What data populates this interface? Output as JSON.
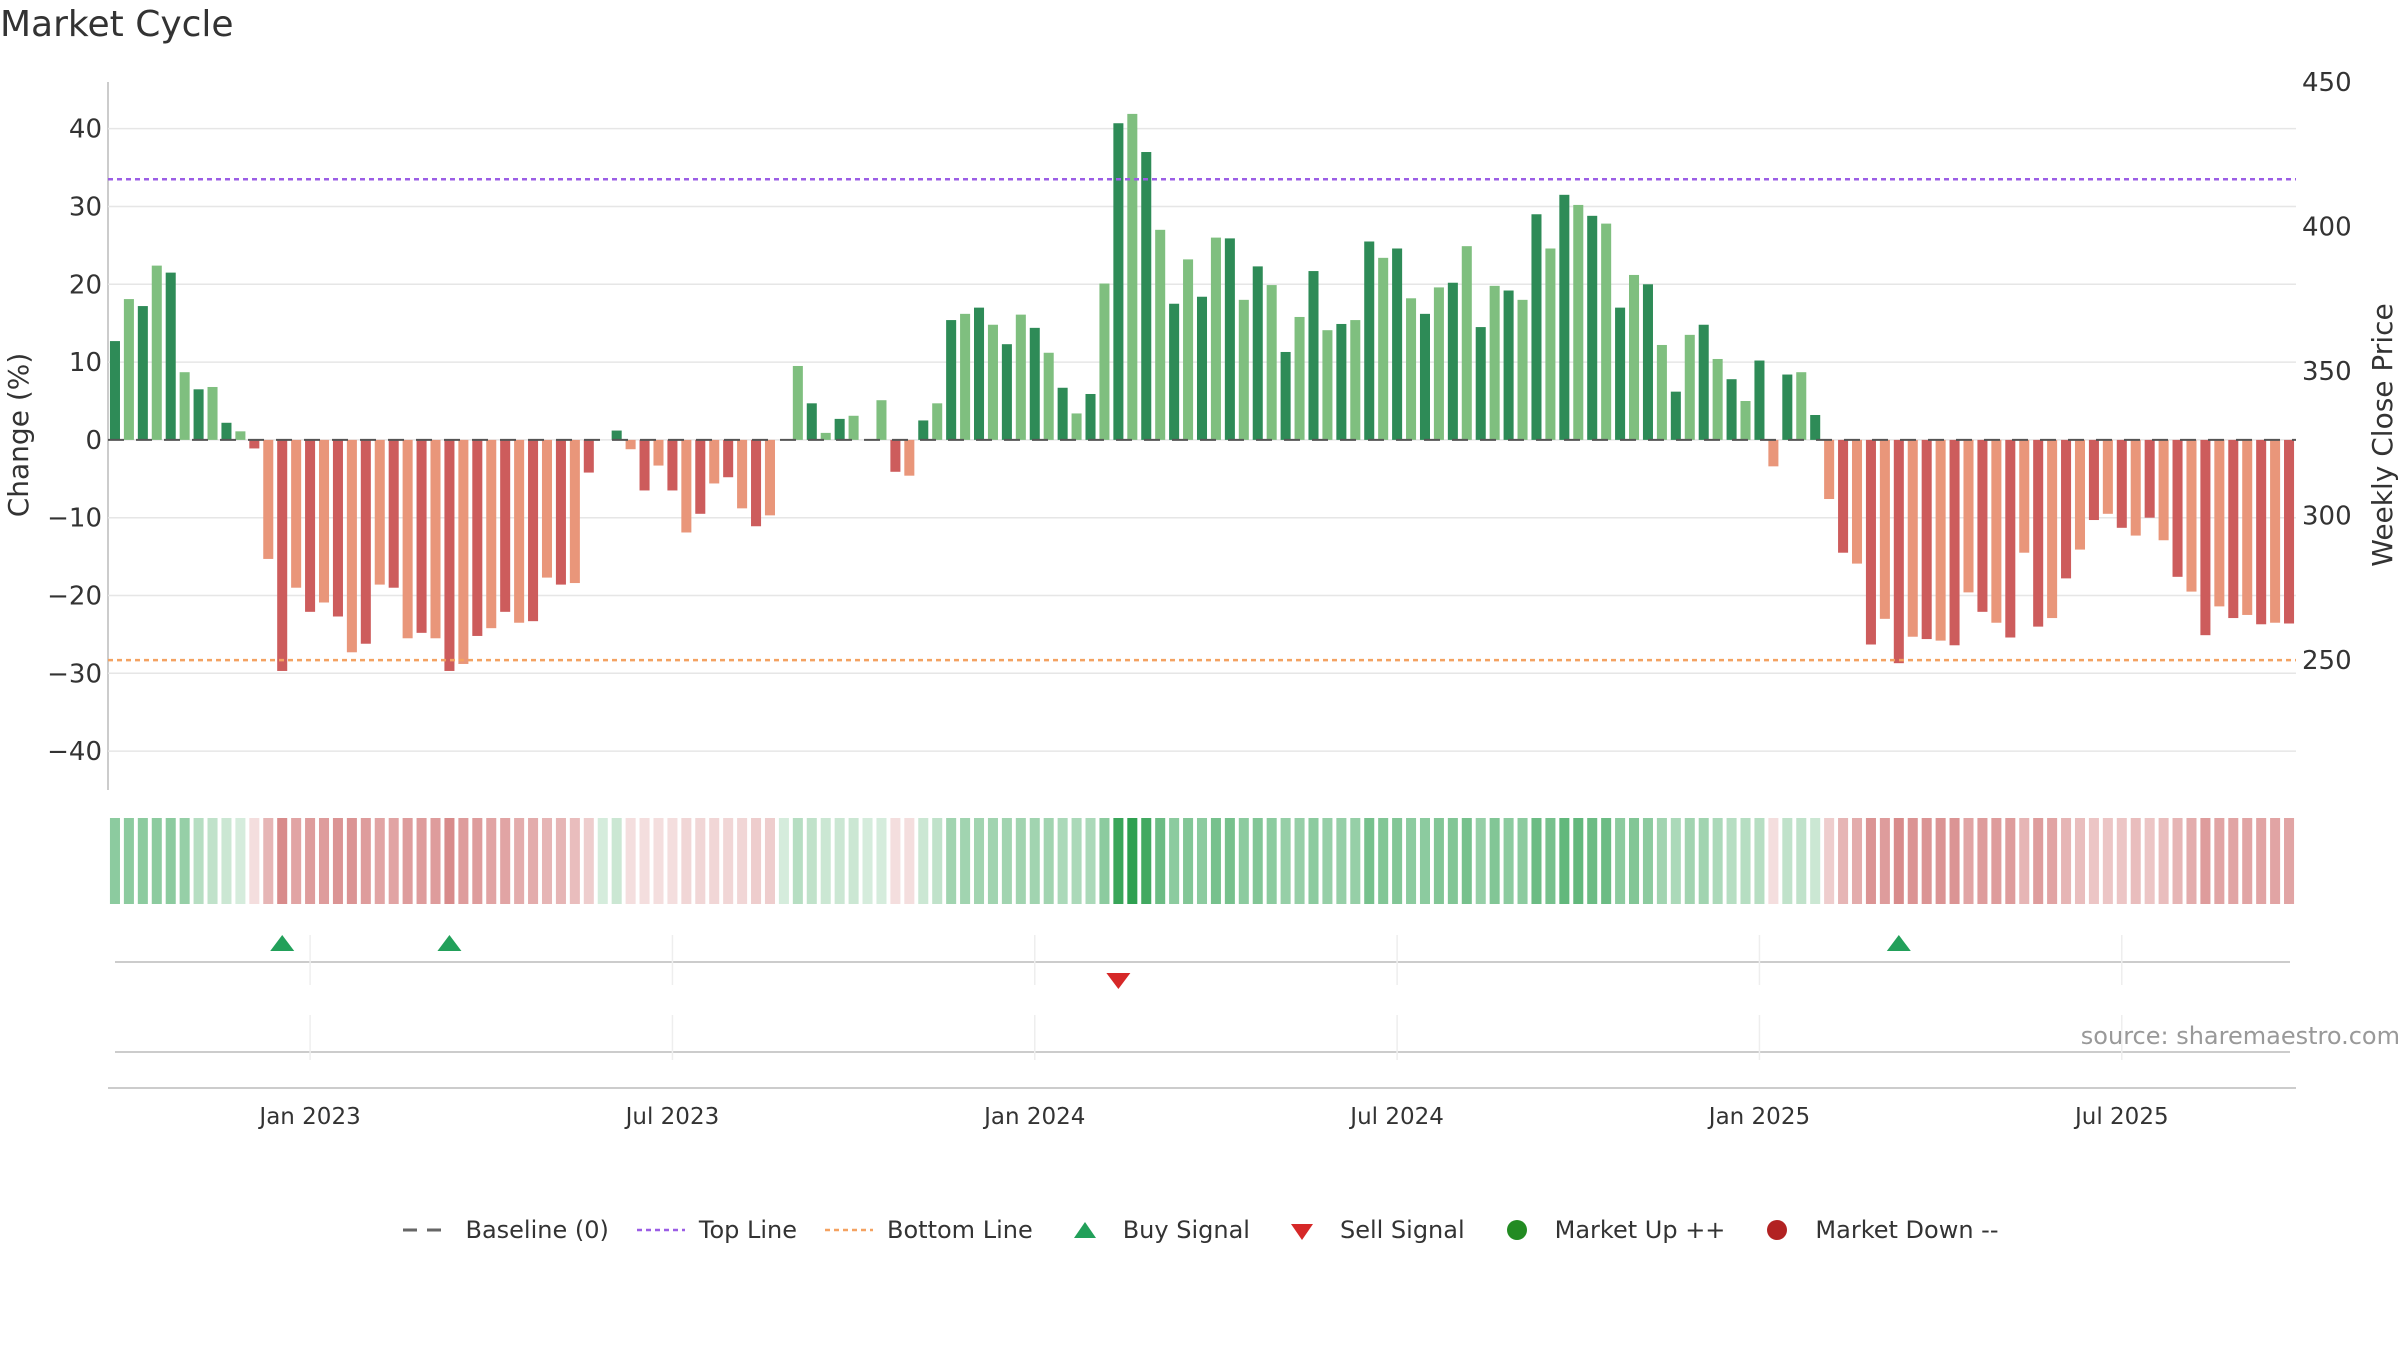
{
  "title": "Market Cycle",
  "source": "source: sharemaestro.com",
  "legend": [
    {
      "key": "baseline",
      "label": "Baseline (0)",
      "color": "#666666"
    },
    {
      "key": "top",
      "label": "Top Line",
      "color": "#9b5de5"
    },
    {
      "key": "bottom",
      "label": "Bottom Line",
      "color": "#f4a261"
    },
    {
      "key": "buy",
      "label": "Buy Signal",
      "color": "#22a05a"
    },
    {
      "key": "sell",
      "label": "Sell Signal",
      "color": "#d62828"
    },
    {
      "key": "up",
      "label": "Market Up ++",
      "color": "#228b22"
    },
    {
      "key": "down",
      "label": "Market Down --",
      "color": "#b22222"
    }
  ],
  "chart_data": {
    "type": "bar",
    "title": "Market Cycle",
    "ylabel": "Change (%)",
    "y2label": "Weekly Close Price",
    "ylim": [
      -45,
      46
    ],
    "y2lim": [
      205,
      450
    ],
    "yticks": [
      40,
      30,
      20,
      10,
      0,
      -10,
      -20,
      -30,
      -40
    ],
    "y2ticks": [
      450,
      400,
      350,
      300,
      250
    ],
    "xlabels": [
      "Jan 2023",
      "Jul 2023",
      "Jan 2024",
      "Jul 2024",
      "Jan 2025",
      "Jul 2025"
    ],
    "xlabel_index": [
      14,
      40,
      66,
      92,
      118,
      144
    ],
    "top_line": 33.5,
    "bottom_line": -28.3,
    "baseline": 0,
    "grid": true,
    "legend_position": "bottom",
    "values": [
      12.7,
      18.1,
      17.2,
      22.4,
      21.5,
      8.7,
      6.5,
      6.8,
      2.2,
      1.1,
      -1.1,
      -15.3,
      -29.7,
      -19.0,
      -22.1,
      -20.9,
      -22.7,
      -27.3,
      -26.2,
      -18.6,
      -19.0,
      -25.5,
      -24.8,
      -25.5,
      -29.7,
      -28.8,
      -25.2,
      -24.2,
      -22.1,
      -23.5,
      -23.3,
      -17.7,
      -18.6,
      -18.4,
      -4.2,
      0,
      1.2,
      -1.2,
      -6.5,
      -3.3,
      -6.5,
      -11.9,
      -9.5,
      -5.6,
      -4.8,
      -8.8,
      -11.1,
      -9.7,
      0,
      9.5,
      4.7,
      0.9,
      2.7,
      3.1,
      0,
      5.1,
      -4.1,
      -4.6,
      2.5,
      4.7,
      15.4,
      16.2,
      17.0,
      14.8,
      12.3,
      16.1,
      14.4,
      11.2,
      6.7,
      3.4,
      5.9,
      20.1,
      40.7,
      41.9,
      37.0,
      27.0,
      17.5,
      23.2,
      18.4,
      26.0,
      25.9,
      18.0,
      22.3,
      19.9,
      11.3,
      15.8,
      21.7,
      14.1,
      14.9,
      15.4,
      25.5,
      23.4,
      24.6,
      18.2,
      16.2,
      19.6,
      20.2,
      24.9,
      14.5,
      19.8,
      19.2,
      18.0,
      29.0,
      24.6,
      31.5,
      30.2,
      28.8,
      27.8,
      17.0,
      21.2,
      20.0,
      12.2,
      6.2,
      13.5,
      14.8,
      10.4,
      7.8,
      5.0,
      10.2,
      -3.4,
      8.4,
      8.7,
      3.2,
      -7.6,
      -14.5,
      -15.9,
      -26.3,
      -23.0,
      -28.7,
      -25.3,
      -25.6,
      -25.8,
      -26.4,
      -19.6,
      -22.1,
      -23.5,
      -25.4,
      -14.5,
      -24.0,
      -22.9,
      -17.8,
      -14.1,
      -10.3,
      -9.5,
      -11.3,
      -12.3,
      -10.0,
      -12.9,
      -17.6,
      -19.5,
      -25.1,
      -21.4,
      -22.9,
      -22.5,
      -23.7,
      -23.5,
      -23.6
    ],
    "price_shade": [
      0.55,
      0.55,
      0.55,
      0.55,
      0.55,
      0.5,
      0.35,
      0.3,
      0.25,
      0.2,
      0.2,
      0.45,
      0.7,
      0.55,
      0.6,
      0.6,
      0.65,
      0.65,
      0.6,
      0.55,
      0.55,
      0.6,
      0.6,
      0.6,
      0.7,
      0.6,
      0.6,
      0.55,
      0.55,
      0.5,
      0.5,
      0.45,
      0.45,
      0.4,
      0.3,
      0.2,
      0.25,
      0.2,
      0.2,
      0.2,
      0.2,
      0.25,
      0.25,
      0.25,
      0.25,
      0.25,
      0.3,
      0.3,
      0.2,
      0.35,
      0.3,
      0.25,
      0.25,
      0.25,
      0.2,
      0.2,
      0.2,
      0.2,
      0.25,
      0.3,
      0.45,
      0.45,
      0.45,
      0.45,
      0.45,
      0.45,
      0.45,
      0.45,
      0.4,
      0.4,
      0.4,
      0.55,
      0.95,
      1.0,
      0.9,
      0.7,
      0.55,
      0.6,
      0.55,
      0.65,
      0.65,
      0.55,
      0.6,
      0.55,
      0.5,
      0.5,
      0.55,
      0.5,
      0.5,
      0.5,
      0.65,
      0.6,
      0.6,
      0.55,
      0.55,
      0.6,
      0.6,
      0.65,
      0.5,
      0.6,
      0.55,
      0.55,
      0.7,
      0.65,
      0.75,
      0.75,
      0.7,
      0.7,
      0.55,
      0.6,
      0.55,
      0.45,
      0.4,
      0.45,
      0.45,
      0.4,
      0.35,
      0.35,
      0.35,
      0.2,
      0.3,
      0.3,
      0.25,
      0.3,
      0.45,
      0.5,
      0.65,
      0.6,
      0.7,
      0.65,
      0.65,
      0.65,
      0.65,
      0.55,
      0.6,
      0.6,
      0.6,
      0.45,
      0.6,
      0.55,
      0.45,
      0.4,
      0.35,
      0.35,
      0.35,
      0.4,
      0.35,
      0.4,
      0.45,
      0.5,
      0.6,
      0.55,
      0.55,
      0.55,
      0.55,
      0.55,
      0.55
    ],
    "buy_signals": [
      12,
      24,
      128
    ],
    "sell_signals": [
      72
    ]
  }
}
